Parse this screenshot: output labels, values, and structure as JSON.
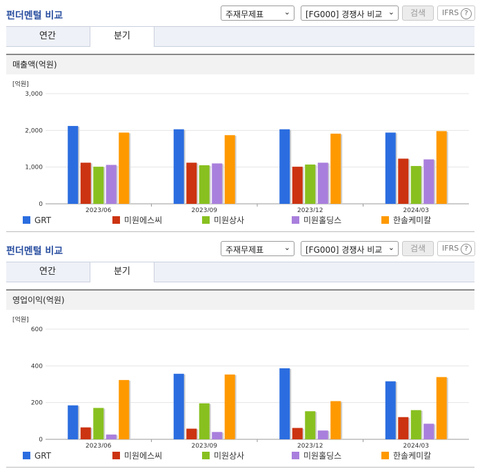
{
  "colors": {
    "GRT": "#2b6de0",
    "미원에스씨": "#cc3311",
    "미원상사": "#88c020",
    "미원홀딩스": "#a97fdd",
    "한솔케미칼": "#ff9900"
  },
  "series_names": [
    "GRT",
    "미원에스씨",
    "미원상사",
    "미원홀딩스",
    "한솔케미칼"
  ],
  "panels": [
    {
      "title": "펀더멘털 비교",
      "select1": "주재무제표",
      "select2": "[FG000] 경쟁사 비교",
      "search_label": "검색",
      "ifrs_label": "IFRS",
      "help_label": "?",
      "tabs": [
        "연간",
        "분기"
      ],
      "subtitle": "매출액(억원)",
      "chart_data": {
        "type": "bar",
        "unit_label": "[억원]",
        "categories": [
          "2023/06",
          "2023/09",
          "2023/12",
          "2024/03"
        ],
        "ylim": [
          0,
          3000
        ],
        "yticks": [
          "0",
          "1,000",
          "2,000",
          "3,000"
        ],
        "ytick_values": [
          0,
          1000,
          2000,
          3000
        ],
        "grid": true,
        "legend_position": "bottom",
        "series": [
          {
            "name": "GRT",
            "values": [
              2120,
              2030,
              2030,
              1940
            ]
          },
          {
            "name": "미원에스씨",
            "values": [
              1120,
              1120,
              1010,
              1230
            ]
          },
          {
            "name": "미원상사",
            "values": [
              1010,
              1050,
              1070,
              1030
            ]
          },
          {
            "name": "미원홀딩스",
            "values": [
              1060,
              1100,
              1120,
              1210
            ]
          },
          {
            "name": "한솔케미칼",
            "values": [
              1940,
              1870,
              1910,
              1980
            ]
          }
        ]
      }
    },
    {
      "title": "펀더멘털 비교",
      "select1": "주재무제표",
      "select2": "[FG000] 경쟁사 비교",
      "search_label": "검색",
      "ifrs_label": "IFRS",
      "help_label": "?",
      "tabs": [
        "연간",
        "분기"
      ],
      "subtitle": "영업이익(억원)",
      "chart_data": {
        "type": "bar",
        "unit_label": "[억원]",
        "categories": [
          "2023/06",
          "2023/09",
          "2023/12",
          "2024/03"
        ],
        "ylim": [
          0,
          600
        ],
        "yticks": [
          "0",
          "200",
          "400",
          "600"
        ],
        "ytick_values": [
          0,
          200,
          400,
          600
        ],
        "grid": true,
        "legend_position": "bottom",
        "series": [
          {
            "name": "GRT",
            "values": [
              185,
              357,
              387,
              316
            ]
          },
          {
            "name": "미원에스씨",
            "values": [
              65,
              58,
              62,
              121
            ]
          },
          {
            "name": "미원상사",
            "values": [
              171,
              196,
              153,
              159
            ]
          },
          {
            "name": "미원홀딩스",
            "values": [
              26,
              40,
              48,
              85
            ]
          },
          {
            "name": "한솔케미칼",
            "values": [
              323,
              353,
              208,
              339
            ]
          }
        ]
      }
    }
  ]
}
